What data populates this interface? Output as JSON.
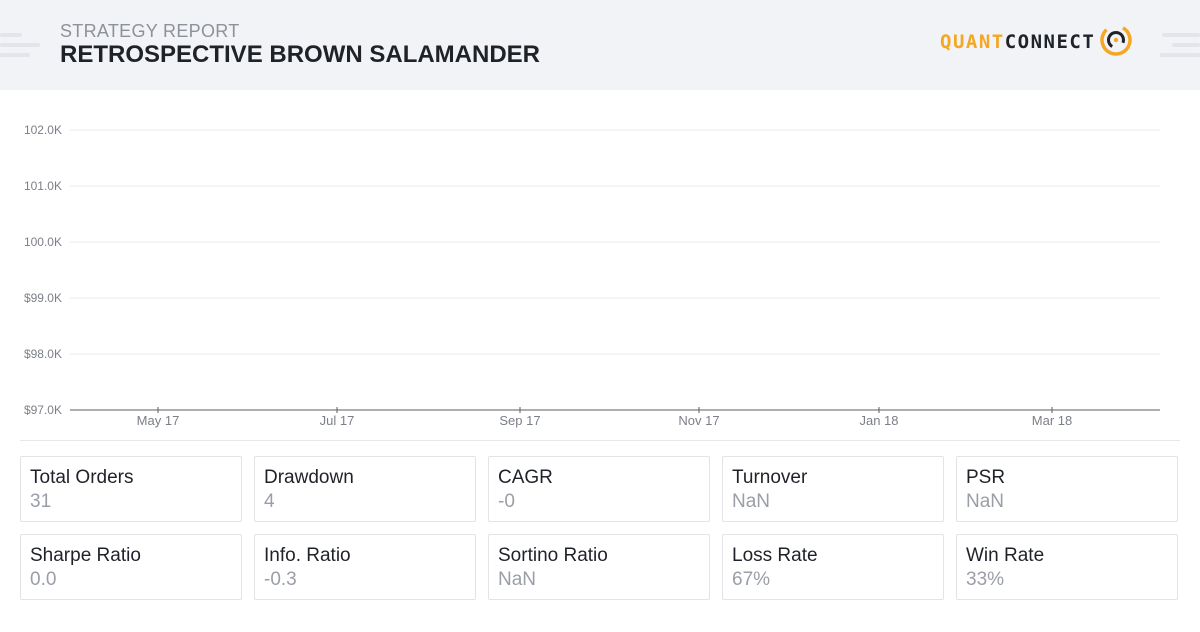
{
  "header": {
    "subtitle": "STRATEGY REPORT",
    "title": "RETROSPECTIVE BROWN SALAMANDER",
    "logo_part1": "QUANT",
    "logo_part2": "CONNECT",
    "logo_icon": "quantconnect-logo-icon",
    "colors": {
      "accent": "#f5a623",
      "background": "#f2f3f6",
      "text": "#1f2228"
    }
  },
  "chart_data": {
    "type": "line",
    "y_ticks": [
      "102.0K",
      "101.0K",
      "100.0K",
      "$99.0K",
      "$98.0K",
      "$97.0K"
    ],
    "x_ticks": [
      "May 17",
      "Jul 17",
      "Sep 17",
      "Nov 17",
      "Jan 18",
      "Mar 18"
    ],
    "series": []
  },
  "stats": [
    {
      "label": "Total Orders",
      "value": "31"
    },
    {
      "label": "Drawdown",
      "value": "4"
    },
    {
      "label": "CAGR",
      "value": "-0"
    },
    {
      "label": "Turnover",
      "value": "NaN"
    },
    {
      "label": "PSR",
      "value": "NaN"
    },
    {
      "label": "Sharpe Ratio",
      "value": "0.0"
    },
    {
      "label": "Info. Ratio",
      "value": "-0.3"
    },
    {
      "label": "Sortino Ratio",
      "value": "NaN"
    },
    {
      "label": "Loss Rate",
      "value": "67%"
    },
    {
      "label": "Win Rate",
      "value": "33%"
    }
  ]
}
